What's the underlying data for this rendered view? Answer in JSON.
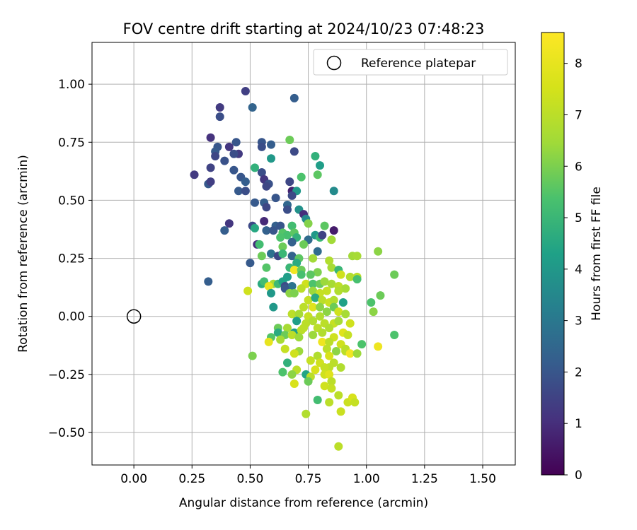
{
  "chart_data": {
    "type": "scatter",
    "title": "FOV centre drift starting at 2024/10/23 07:48:23",
    "xlabel": "Angular distance from reference (arcmin)",
    "ylabel": "Rotation from reference (arcmin)",
    "xlim": [
      -0.18,
      1.64
    ],
    "ylim": [
      -0.64,
      1.18
    ],
    "xticks": [
      0.0,
      0.25,
      0.5,
      0.75,
      1.0,
      1.25,
      1.5
    ],
    "xtick_labels": [
      "0.00",
      "0.25",
      "0.50",
      "0.75",
      "1.00",
      "1.25",
      "1.50"
    ],
    "yticks": [
      -0.5,
      -0.25,
      0.0,
      0.25,
      0.5,
      0.75,
      1.0
    ],
    "ytick_labels": [
      "−0.50",
      "−0.25",
      "0.00",
      "0.25",
      "0.50",
      "0.75",
      "1.00"
    ],
    "grid": true,
    "legend": {
      "placement": "top-right",
      "entries": [
        "Reference platepar"
      ]
    },
    "reference_point": {
      "label": "Reference platepar",
      "x": 0.0,
      "y": 0.0,
      "marker": "open-circle"
    },
    "colorbar": {
      "label": "Hours from first FF file",
      "colormap": "viridis",
      "range": [
        0,
        8.6
      ],
      "ticks": [
        0,
        1,
        2,
        3,
        4,
        5,
        6,
        7,
        8
      ],
      "tick_labels": [
        "0",
        "1",
        "2",
        "3",
        "4",
        "5",
        "6",
        "7",
        "8"
      ]
    },
    "series": [
      {
        "color_by": "hours",
        "points": [
          [
            0.48,
            0.97,
            1.4
          ],
          [
            0.69,
            0.94,
            2.2
          ],
          [
            0.37,
            0.9,
            1.3
          ],
          [
            0.51,
            0.9,
            2.4
          ],
          [
            0.37,
            0.86,
            1.8
          ],
          [
            0.33,
            0.77,
            1.1
          ],
          [
            0.44,
            0.75,
            2.0
          ],
          [
            0.55,
            0.75,
            2.0
          ],
          [
            0.67,
            0.76,
            5.8
          ],
          [
            0.55,
            0.73,
            1.8
          ],
          [
            0.59,
            0.74,
            2.2
          ],
          [
            0.36,
            0.73,
            2.0
          ],
          [
            0.41,
            0.73,
            1.2
          ],
          [
            0.35,
            0.71,
            2.1
          ],
          [
            0.45,
            0.7,
            1.3
          ],
          [
            0.69,
            0.71,
            1.7
          ],
          [
            0.35,
            0.69,
            1.6
          ],
          [
            0.43,
            0.7,
            1.8
          ],
          [
            0.78,
            0.69,
            4.8
          ],
          [
            0.39,
            0.67,
            1.9
          ],
          [
            0.59,
            0.68,
            4.0
          ],
          [
            0.52,
            0.64,
            4.8
          ],
          [
            0.33,
            0.64,
            1.5
          ],
          [
            0.8,
            0.65,
            4.2
          ],
          [
            0.43,
            0.63,
            2.0
          ],
          [
            0.55,
            0.62,
            1.8
          ],
          [
            0.26,
            0.61,
            1.3
          ],
          [
            0.46,
            0.6,
            2.0
          ],
          [
            0.79,
            0.61,
            5.6
          ],
          [
            0.72,
            0.6,
            5.4
          ],
          [
            0.56,
            0.59,
            1.2
          ],
          [
            0.67,
            0.58,
            1.6
          ],
          [
            0.48,
            0.58,
            2.2
          ],
          [
            0.32,
            0.57,
            2.1
          ],
          [
            0.33,
            0.58,
            1.4
          ],
          [
            0.58,
            0.57,
            1.9
          ],
          [
            0.57,
            0.56,
            1.6
          ],
          [
            0.68,
            0.54,
            0.7
          ],
          [
            0.7,
            0.54,
            4.0
          ],
          [
            0.45,
            0.54,
            2.1
          ],
          [
            0.48,
            0.54,
            1.8
          ],
          [
            0.86,
            0.54,
            3.6
          ],
          [
            0.68,
            0.52,
            1.7
          ],
          [
            0.61,
            0.51,
            2.0
          ],
          [
            0.52,
            0.49,
            2.1
          ],
          [
            0.56,
            0.49,
            2.2
          ],
          [
            0.66,
            0.48,
            2.5
          ],
          [
            0.57,
            0.47,
            1.6
          ],
          [
            0.66,
            0.46,
            1.8
          ],
          [
            0.71,
            0.46,
            3.8
          ],
          [
            0.73,
            0.44,
            1.0
          ],
          [
            0.74,
            0.42,
            3.6
          ],
          [
            0.56,
            0.41,
            0.9
          ],
          [
            0.41,
            0.4,
            1.2
          ],
          [
            0.51,
            0.39,
            1.7
          ],
          [
            0.52,
            0.38,
            4.5
          ],
          [
            0.61,
            0.39,
            2.3
          ],
          [
            0.63,
            0.39,
            2.0
          ],
          [
            0.68,
            0.39,
            5.2
          ],
          [
            0.75,
            0.4,
            6.1
          ],
          [
            0.82,
            0.39,
            5.6
          ],
          [
            0.86,
            0.37,
            0.6
          ],
          [
            0.39,
            0.37,
            2.2
          ],
          [
            0.57,
            0.37,
            2.3
          ],
          [
            0.6,
            0.37,
            2.0
          ],
          [
            0.64,
            0.36,
            5.5
          ],
          [
            0.66,
            0.35,
            5.3
          ],
          [
            0.69,
            0.36,
            5.6
          ],
          [
            0.63,
            0.34,
            5.4
          ],
          [
            0.7,
            0.34,
            4.8
          ],
          [
            0.75,
            0.33,
            2.6
          ],
          [
            0.78,
            0.35,
            4.0
          ],
          [
            0.8,
            0.34,
            5.0
          ],
          [
            0.81,
            0.35,
            1.5
          ],
          [
            0.85,
            0.33,
            6.5
          ],
          [
            0.73,
            0.31,
            5.8
          ],
          [
            0.68,
            0.32,
            2.3
          ],
          [
            0.53,
            0.31,
            1.0
          ],
          [
            0.54,
            0.31,
            5.2
          ],
          [
            0.64,
            0.3,
            5.8
          ],
          [
            0.79,
            0.28,
            2.6
          ],
          [
            0.59,
            0.27,
            2.8
          ],
          [
            0.62,
            0.26,
            1.6
          ],
          [
            0.64,
            0.27,
            5.0
          ],
          [
            0.68,
            0.26,
            2.4
          ],
          [
            0.71,
            0.25,
            5.6
          ],
          [
            0.77,
            0.25,
            6.5
          ],
          [
            0.55,
            0.26,
            5.8
          ],
          [
            0.5,
            0.23,
            2.1
          ],
          [
            0.7,
            0.23,
            4.6
          ],
          [
            0.84,
            0.24,
            6.8
          ],
          [
            0.57,
            0.21,
            5.5
          ],
          [
            0.67,
            0.21,
            5.0
          ],
          [
            0.69,
            0.2,
            8.3
          ],
          [
            0.72,
            0.2,
            5.8
          ],
          [
            0.85,
            0.21,
            6.6
          ],
          [
            0.88,
            0.2,
            5.0
          ],
          [
            0.79,
            0.19,
            6.0
          ],
          [
            0.66,
            0.17,
            4.2
          ],
          [
            0.72,
            0.18,
            5.3
          ],
          [
            0.76,
            0.18,
            5.6
          ],
          [
            0.94,
            0.26,
            6.5
          ],
          [
            0.96,
            0.26,
            6.6
          ],
          [
            1.05,
            0.28,
            6.2
          ],
          [
            1.12,
            0.18,
            5.8
          ],
          [
            0.93,
            0.17,
            6.8
          ],
          [
            0.96,
            0.17,
            7.0
          ],
          [
            0.96,
            0.16,
            5.3
          ],
          [
            0.89,
            0.18,
            7.4
          ],
          [
            0.32,
            0.15,
            2.2
          ],
          [
            0.55,
            0.14,
            4.6
          ],
          [
            0.56,
            0.15,
            5.2
          ],
          [
            0.6,
            0.14,
            6.6
          ],
          [
            0.62,
            0.14,
            5.1
          ],
          [
            0.64,
            0.15,
            4.3
          ],
          [
            0.65,
            0.13,
            1.7
          ],
          [
            0.68,
            0.13,
            2.9
          ],
          [
            0.74,
            0.14,
            7.4
          ],
          [
            0.72,
            0.12,
            7.0
          ],
          [
            0.77,
            0.14,
            5.4
          ],
          [
            0.8,
            0.14,
            5.8
          ],
          [
            0.82,
            0.15,
            6.4
          ],
          [
            0.85,
            0.14,
            6.6
          ],
          [
            0.88,
            0.13,
            7.0
          ],
          [
            0.91,
            0.12,
            6.6
          ],
          [
            0.58,
            0.13,
            8.0
          ],
          [
            0.49,
            0.11,
            7.4
          ],
          [
            0.65,
            0.12,
            2.0
          ],
          [
            0.67,
            0.1,
            6.2
          ],
          [
            0.69,
            0.1,
            6.0
          ],
          [
            0.59,
            0.1,
            4.0
          ],
          [
            0.77,
            0.11,
            6.4
          ],
          [
            0.8,
            0.1,
            7.2
          ],
          [
            0.83,
            0.11,
            7.2
          ],
          [
            0.88,
            0.11,
            6.8
          ],
          [
            0.75,
            0.07,
            7.2
          ],
          [
            0.78,
            0.08,
            4.6
          ],
          [
            0.81,
            0.07,
            7.0
          ],
          [
            0.84,
            0.06,
            7.3
          ],
          [
            0.86,
            0.07,
            6.8
          ],
          [
            0.9,
            0.06,
            4.3
          ],
          [
            1.02,
            0.06,
            5.4
          ],
          [
            1.06,
            0.09,
            5.8
          ],
          [
            0.6,
            0.04,
            4.0
          ],
          [
            0.73,
            0.04,
            7.0
          ],
          [
            0.77,
            0.04,
            7.8
          ],
          [
            0.8,
            0.04,
            6.2
          ],
          [
            0.86,
            0.04,
            5.8
          ],
          [
            0.83,
            0.02,
            6.2
          ],
          [
            0.88,
            0.02,
            7.4
          ],
          [
            0.68,
            0.01,
            7.0
          ],
          [
            0.71,
            0.01,
            6.6
          ],
          [
            0.75,
            0.0,
            7.2
          ],
          [
            0.8,
            0.0,
            6.8
          ],
          [
            0.91,
            0.01,
            6.6
          ],
          [
            1.03,
            0.02,
            6.2
          ],
          [
            0.7,
            -0.02,
            4.2
          ],
          [
            0.74,
            -0.03,
            7.0
          ],
          [
            0.77,
            -0.02,
            6.8
          ],
          [
            0.82,
            -0.03,
            7.0
          ],
          [
            0.86,
            -0.03,
            7.2
          ],
          [
            0.88,
            -0.02,
            6.6
          ],
          [
            0.93,
            -0.03,
            7.4
          ],
          [
            0.62,
            -0.05,
            5.8
          ],
          [
            0.66,
            -0.05,
            6.6
          ],
          [
            0.73,
            -0.05,
            7.0
          ],
          [
            0.79,
            -0.05,
            7.0
          ],
          [
            0.84,
            -0.05,
            6.8
          ],
          [
            0.62,
            -0.07,
            4.6
          ],
          [
            0.69,
            -0.07,
            4.2
          ],
          [
            0.72,
            -0.06,
            7.0
          ],
          [
            0.81,
            -0.07,
            6.8
          ],
          [
            0.9,
            -0.07,
            7.8
          ],
          [
            0.65,
            -0.08,
            5.8
          ],
          [
            0.68,
            -0.08,
            7.0
          ],
          [
            0.77,
            -0.08,
            6.4
          ],
          [
            0.92,
            -0.08,
            7.2
          ],
          [
            1.12,
            -0.08,
            5.4
          ],
          [
            0.59,
            -0.09,
            5.5
          ],
          [
            0.71,
            -0.09,
            6.4
          ],
          [
            0.86,
            -0.09,
            7.4
          ],
          [
            0.58,
            -0.11,
            8.0
          ],
          [
            0.63,
            -0.1,
            6.6
          ],
          [
            0.81,
            -0.11,
            8.2
          ],
          [
            0.84,
            -0.11,
            7.0
          ],
          [
            0.89,
            -0.12,
            7.4
          ],
          [
            0.98,
            -0.12,
            5.4
          ],
          [
            0.65,
            -0.14,
            7.2
          ],
          [
            0.71,
            -0.15,
            6.4
          ],
          [
            0.83,
            -0.14,
            7.0
          ],
          [
            0.87,
            -0.15,
            6.2
          ],
          [
            0.91,
            -0.14,
            7.0
          ],
          [
            1.05,
            -0.13,
            8.2
          ],
          [
            0.51,
            -0.17,
            6.0
          ],
          [
            0.69,
            -0.16,
            7.4
          ],
          [
            0.79,
            -0.17,
            6.8
          ],
          [
            0.84,
            -0.17,
            7.6
          ],
          [
            0.91,
            -0.15,
            7.0
          ],
          [
            0.93,
            -0.16,
            8.3
          ],
          [
            0.96,
            -0.16,
            6.4
          ],
          [
            0.66,
            -0.2,
            4.8
          ],
          [
            0.76,
            -0.19,
            7.2
          ],
          [
            0.8,
            -0.2,
            7.4
          ],
          [
            0.86,
            -0.2,
            7.0
          ],
          [
            0.84,
            -0.22,
            7.0
          ],
          [
            0.89,
            -0.22,
            6.8
          ],
          [
            0.78,
            -0.23,
            7.6
          ],
          [
            0.82,
            -0.22,
            7.2
          ],
          [
            0.7,
            -0.23,
            7.0
          ],
          [
            0.64,
            -0.24,
            5.4
          ],
          [
            0.68,
            -0.25,
            6.2
          ],
          [
            0.74,
            -0.25,
            4.4
          ],
          [
            0.76,
            -0.26,
            7.0
          ],
          [
            0.82,
            -0.25,
            7.4
          ],
          [
            0.84,
            -0.25,
            7.8
          ],
          [
            0.85,
            -0.28,
            7.0
          ],
          [
            0.75,
            -0.28,
            5.8
          ],
          [
            0.69,
            -0.29,
            7.6
          ],
          [
            0.82,
            -0.3,
            7.4
          ],
          [
            0.85,
            -0.31,
            7.2
          ],
          [
            0.79,
            -0.36,
            5.2
          ],
          [
            0.84,
            -0.37,
            7.0
          ],
          [
            0.88,
            -0.34,
            7.0
          ],
          [
            0.92,
            -0.37,
            7.3
          ],
          [
            0.94,
            -0.35,
            7.6
          ],
          [
            0.95,
            -0.37,
            7.2
          ],
          [
            0.74,
            -0.42,
            6.8
          ],
          [
            0.89,
            -0.41,
            7.3
          ],
          [
            0.88,
            -0.56,
            7.0
          ]
        ]
      }
    ]
  }
}
